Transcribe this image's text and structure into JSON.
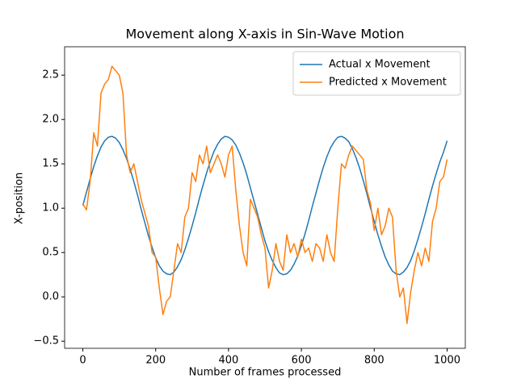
{
  "chart_data": {
    "type": "line",
    "title": "Movement along X-axis in Sin-Wave Motion",
    "x_label": "Number of frames processed",
    "y_label": "X-position",
    "x": [
      0,
      10,
      20,
      30,
      40,
      50,
      60,
      70,
      80,
      90,
      100,
      110,
      120,
      130,
      140,
      150,
      160,
      170,
      180,
      190,
      200,
      210,
      220,
      230,
      240,
      250,
      260,
      270,
      280,
      290,
      300,
      310,
      320,
      330,
      340,
      350,
      360,
      370,
      380,
      390,
      400,
      410,
      420,
      430,
      440,
      450,
      460,
      470,
      480,
      490,
      500,
      510,
      520,
      530,
      540,
      550,
      560,
      570,
      580,
      590,
      600,
      610,
      620,
      630,
      640,
      650,
      660,
      670,
      680,
      690,
      700,
      710,
      720,
      730,
      740,
      750,
      760,
      770,
      780,
      790,
      800,
      810,
      820,
      830,
      840,
      850,
      860,
      870,
      880,
      890,
      900,
      910,
      920,
      930,
      940,
      950,
      960,
      970,
      980,
      990,
      1000
    ],
    "series": [
      {
        "name": "Actual x Movement",
        "color": "#1f77b4",
        "values": [
          1.03,
          1.18,
          1.33,
          1.47,
          1.59,
          1.69,
          1.76,
          1.8,
          1.81,
          1.79,
          1.74,
          1.66,
          1.56,
          1.44,
          1.3,
          1.15,
          0.99,
          0.84,
          0.69,
          0.56,
          0.44,
          0.35,
          0.29,
          0.26,
          0.25,
          0.28,
          0.34,
          0.42,
          0.53,
          0.66,
          0.8,
          0.95,
          1.11,
          1.26,
          1.4,
          1.53,
          1.64,
          1.72,
          1.78,
          1.81,
          1.8,
          1.77,
          1.71,
          1.62,
          1.51,
          1.38,
          1.23,
          1.08,
          0.93,
          0.78,
          0.63,
          0.51,
          0.41,
          0.33,
          0.27,
          0.25,
          0.26,
          0.3,
          0.37,
          0.46,
          0.58,
          0.71,
          0.86,
          1.02,
          1.17,
          1.32,
          1.46,
          1.58,
          1.68,
          1.75,
          1.8,
          1.81,
          1.79,
          1.75,
          1.67,
          1.57,
          1.45,
          1.31,
          1.16,
          1.0,
          0.85,
          0.7,
          0.57,
          0.45,
          0.36,
          0.29,
          0.26,
          0.25,
          0.28,
          0.33,
          0.41,
          0.52,
          0.65,
          0.79,
          0.94,
          1.1,
          1.25,
          1.39,
          1.52,
          1.63,
          1.76
        ]
      },
      {
        "name": "Predicted x Movement",
        "color": "#ff7f0e",
        "values": [
          1.05,
          0.98,
          1.3,
          1.85,
          1.7,
          2.3,
          2.4,
          2.45,
          2.6,
          2.55,
          2.5,
          2.3,
          1.6,
          1.4,
          1.5,
          1.3,
          1.1,
          0.95,
          0.8,
          0.5,
          0.45,
          0.1,
          -0.2,
          -0.05,
          0.0,
          0.3,
          0.6,
          0.5,
          0.9,
          1.0,
          1.4,
          1.3,
          1.6,
          1.5,
          1.7,
          1.4,
          1.5,
          1.6,
          1.5,
          1.35,
          1.6,
          1.7,
          1.2,
          0.8,
          0.5,
          0.35,
          1.1,
          1.0,
          0.9,
          0.7,
          0.55,
          0.1,
          0.3,
          0.6,
          0.4,
          0.3,
          0.7,
          0.5,
          0.6,
          0.45,
          0.65,
          0.5,
          0.55,
          0.4,
          0.6,
          0.55,
          0.4,
          0.7,
          0.5,
          0.4,
          1.0,
          1.5,
          1.45,
          1.6,
          1.7,
          1.65,
          1.6,
          1.55,
          1.2,
          1.05,
          0.75,
          1.0,
          0.7,
          0.8,
          1.0,
          0.9,
          0.3,
          0.0,
          0.1,
          -0.3,
          0.05,
          0.3,
          0.5,
          0.35,
          0.55,
          0.4,
          0.85,
          1.0,
          1.3,
          1.35,
          1.55
        ]
      }
    ],
    "xlim": [
      -50,
      1050
    ],
    "ylim": [
      -0.58,
      2.82
    ],
    "xticks": [
      0,
      200,
      400,
      600,
      800,
      1000
    ],
    "yticks": [
      {
        "value": -0.5,
        "label": "−0.5"
      },
      {
        "value": 0,
        "label": "0.0"
      },
      0.5,
      {
        "value": 1,
        "label": "1.0"
      },
      1.5,
      {
        "value": 2,
        "label": "2.0"
      },
      2.5
    ],
    "legend": "upper right"
  }
}
